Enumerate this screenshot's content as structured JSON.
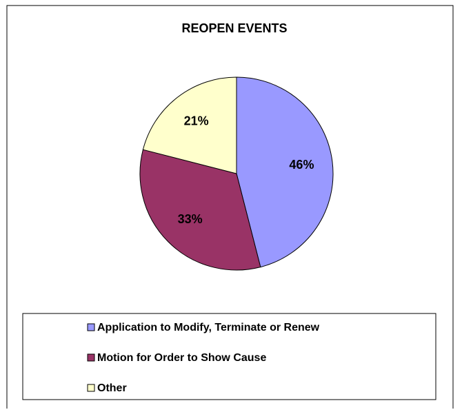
{
  "chart_data": {
    "type": "pie",
    "title": "REOPEN EVENTS",
    "categories": [
      "Application to Modify, Terminate or Renew",
      "Motion for Order to Show Cause",
      "Other"
    ],
    "values": [
      46,
      33,
      21
    ],
    "value_labels": [
      "46%",
      "33%",
      "21%"
    ],
    "colors": [
      "#9999ff",
      "#993366",
      "#ffffcc"
    ]
  }
}
